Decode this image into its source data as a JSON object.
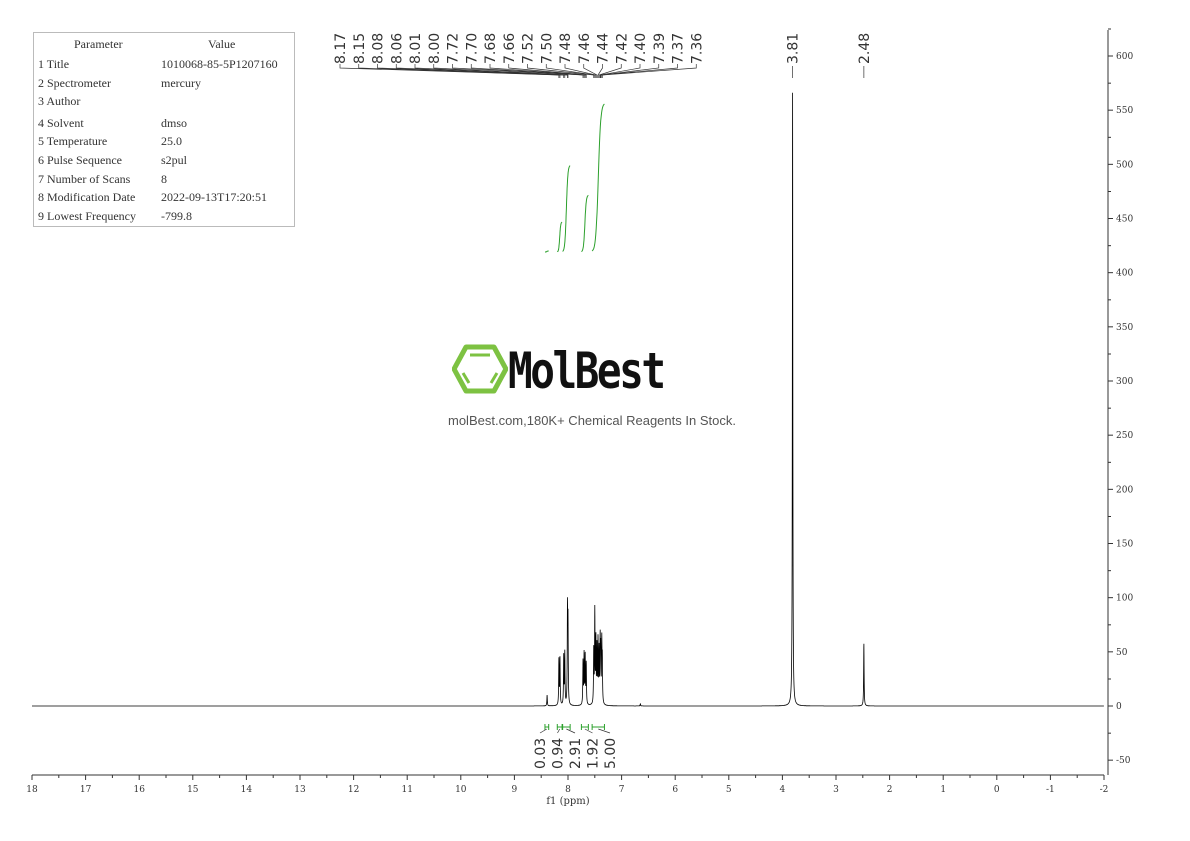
{
  "parameters": {
    "header": {
      "name": "Parameter",
      "value": "Value"
    },
    "rows": [
      {
        "name": "1 Title",
        "value": "1010068-85-5P1207160"
      },
      {
        "name": "2 Spectrometer",
        "value": "mercury"
      },
      {
        "name": "3 Author",
        "value": ""
      },
      {
        "name": "4 Solvent",
        "value": "dmso"
      },
      {
        "name": "5 Temperature",
        "value": "25.0"
      },
      {
        "name": "6 Pulse Sequence",
        "value": "s2pul"
      },
      {
        "name": "7 Number of Scans",
        "value": "8"
      },
      {
        "name": "8 Modification Date",
        "value": "2022-09-13T17:20:51"
      },
      {
        "name": "9 Lowest Frequency",
        "value": "-799.8"
      }
    ]
  },
  "watermark": {
    "brand": "MolBest",
    "tagline": "molBest.com,180K+ Chemical Reagents In Stock.",
    "brand_color": "#7dc242"
  },
  "chart_data": {
    "type": "line",
    "xlabel": "f1 (ppm)",
    "xlim": [
      18,
      -2
    ],
    "ylim": [
      -60,
      620
    ],
    "x_ticks": [
      "18",
      "17",
      "16",
      "15",
      "14",
      "13",
      "12",
      "11",
      "10",
      "9",
      "8",
      "7",
      "6",
      "5",
      "4",
      "3",
      "2",
      "1",
      "0",
      "-1",
      "-2"
    ],
    "y_ticks": [
      "-50",
      "0",
      "50",
      "100",
      "150",
      "200",
      "250",
      "300",
      "350",
      "400",
      "450",
      "500",
      "550",
      "600"
    ],
    "line_color": "#000000",
    "integral_color": "#2ca02c",
    "peaks": [
      {
        "ppm": 8.39,
        "intensity": 10
      },
      {
        "ppm": 8.17,
        "intensity": 42
      },
      {
        "ppm": 8.15,
        "intensity": 44
      },
      {
        "ppm": 8.08,
        "intensity": 45
      },
      {
        "ppm": 8.06,
        "intensity": 48
      },
      {
        "ppm": 8.01,
        "intensity": 85
      },
      {
        "ppm": 8.0,
        "intensity": 72
      },
      {
        "ppm": 7.72,
        "intensity": 40
      },
      {
        "ppm": 7.7,
        "intensity": 46
      },
      {
        "ppm": 7.68,
        "intensity": 45
      },
      {
        "ppm": 7.66,
        "intensity": 38
      },
      {
        "ppm": 7.52,
        "intensity": 50
      },
      {
        "ppm": 7.5,
        "intensity": 85
      },
      {
        "ppm": 7.48,
        "intensity": 58
      },
      {
        "ppm": 7.46,
        "intensity": 52
      },
      {
        "ppm": 7.44,
        "intensity": 57
      },
      {
        "ppm": 7.42,
        "intensity": 48
      },
      {
        "ppm": 7.4,
        "intensity": 55
      },
      {
        "ppm": 7.39,
        "intensity": 45
      },
      {
        "ppm": 7.37,
        "intensity": 55
      },
      {
        "ppm": 7.36,
        "intensity": 38
      },
      {
        "ppm": 6.65,
        "intensity": 2
      },
      {
        "ppm": 3.81,
        "intensity": 568
      },
      {
        "ppm": 2.48,
        "intensity": 58
      }
    ],
    "peak_labels": [
      "8.17",
      "8.15",
      "8.08",
      "8.06",
      "8.01",
      "8.00",
      "7.72",
      "7.70",
      "7.68",
      "7.66",
      "7.52",
      "7.50",
      "7.48",
      "7.46",
      "7.44",
      "7.42",
      "7.40",
      "7.39",
      "7.37",
      "7.36"
    ],
    "peak_labels_isolated": [
      "3.81",
      "2.48"
    ],
    "integrals": [
      {
        "from": 8.43,
        "to": 8.36,
        "value": "0.03"
      },
      {
        "from": 8.2,
        "to": 8.11,
        "value": "0.94"
      },
      {
        "from": 8.1,
        "to": 7.96,
        "value": "2.91"
      },
      {
        "from": 7.75,
        "to": 7.62,
        "value": "1.92"
      },
      {
        "from": 7.55,
        "to": 7.32,
        "value": "5.00"
      }
    ]
  }
}
